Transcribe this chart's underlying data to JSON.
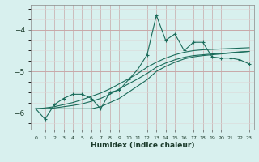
{
  "xlabel": "Humidex (Indice chaleur)",
  "bg_color": "#d8f0ee",
  "grid_color_major": "#c8a8a8",
  "grid_color_minor": "#ddd8d8",
  "line_color": "#1a6b5a",
  "xlim": [
    -0.5,
    23.5
  ],
  "ylim": [
    -6.4,
    -3.4
  ],
  "yticks": [
    -6,
    -5,
    -4
  ],
  "hours": [
    0,
    1,
    2,
    3,
    4,
    5,
    6,
    7,
    8,
    9,
    10,
    11,
    12,
    13,
    14,
    15,
    16,
    17,
    18,
    19,
    20,
    21,
    22,
    23
  ],
  "main_line": [
    -5.9,
    -6.15,
    -5.8,
    -5.65,
    -5.55,
    -5.55,
    -5.65,
    -5.9,
    -5.5,
    -5.45,
    -5.2,
    -4.95,
    -4.6,
    -3.65,
    -4.25,
    -4.1,
    -4.5,
    -4.3,
    -4.3,
    -4.65,
    -4.68,
    -4.68,
    -4.72,
    -4.82
  ],
  "line2": [
    -5.9,
    -5.9,
    -5.9,
    -5.9,
    -5.9,
    -5.9,
    -5.9,
    -5.85,
    -5.75,
    -5.65,
    -5.5,
    -5.35,
    -5.2,
    -5.0,
    -4.88,
    -4.78,
    -4.7,
    -4.65,
    -4.62,
    -4.6,
    -4.58,
    -4.56,
    -4.54,
    -4.52
  ],
  "line3": [
    -5.9,
    -5.9,
    -5.88,
    -5.85,
    -5.82,
    -5.78,
    -5.72,
    -5.65,
    -5.55,
    -5.42,
    -5.3,
    -5.18,
    -5.05,
    -4.9,
    -4.8,
    -4.72,
    -4.66,
    -4.62,
    -4.6,
    -4.58,
    -4.57,
    -4.55,
    -4.53,
    -4.52
  ],
  "line4": [
    -5.9,
    -5.88,
    -5.85,
    -5.8,
    -5.75,
    -5.68,
    -5.6,
    -5.52,
    -5.42,
    -5.3,
    -5.18,
    -5.05,
    -4.9,
    -4.78,
    -4.68,
    -4.6,
    -4.54,
    -4.5,
    -4.48,
    -4.47,
    -4.46,
    -4.45,
    -4.44,
    -4.43
  ]
}
